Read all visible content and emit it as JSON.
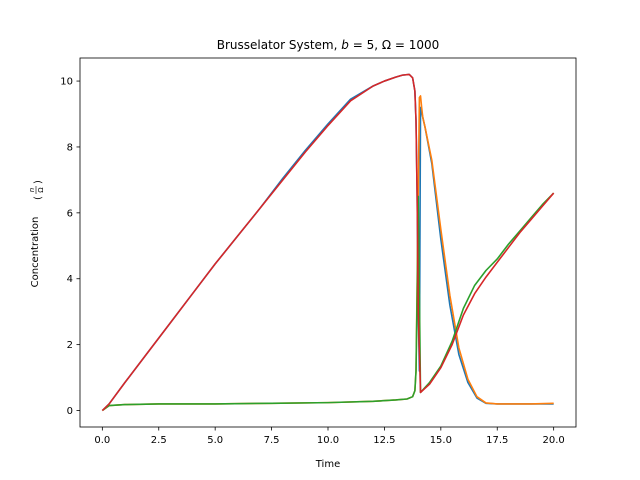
{
  "chart_data": {
    "type": "line",
    "title": "Brusselator System, b = 5, Ω = 1000",
    "title_parts": {
      "prefix": "Brusselator System, ",
      "b_symbol": "b",
      "b_value": " = 5, ",
      "omega_symbol": "Ω",
      "omega_value": " = 1000"
    },
    "xlabel": "Time",
    "ylabel": "Concentration",
    "ylabel_fraction": {
      "numerator": "n",
      "denominator": "Ω"
    },
    "xlim": [
      -0.99,
      20.99
    ],
    "ylim": [
      -0.5,
      10.7
    ],
    "xticks": [
      0.0,
      2.5,
      5.0,
      7.5,
      10.0,
      12.5,
      15.0,
      17.5,
      20.0
    ],
    "xtick_labels": [
      "0.0",
      "2.5",
      "5.0",
      "7.5",
      "10.0",
      "12.5",
      "15.0",
      "17.5",
      "20.0"
    ],
    "yticks": [
      0,
      2,
      4,
      6,
      8,
      10
    ],
    "ytick_labels": [
      "0",
      "2",
      "4",
      "6",
      "8",
      "10"
    ],
    "grid": false,
    "legend": "none",
    "series": [
      {
        "color": "#1f77b4",
        "x": [
          0,
          0.3,
          1,
          2,
          3,
          4,
          5,
          6,
          7,
          8,
          9,
          10,
          11,
          12,
          12.5,
          13,
          13.3,
          13.6,
          13.75,
          13.85,
          13.9,
          13.95,
          14.0,
          14.05,
          14.1,
          14.3,
          14.6,
          15.0,
          15.4,
          15.8,
          16.2,
          16.6,
          17.0,
          17.5,
          18,
          19,
          20
        ],
        "y": [
          0.0,
          0.2,
          0.85,
          1.75,
          2.65,
          3.55,
          4.45,
          5.3,
          6.15,
          7.05,
          7.9,
          8.7,
          9.45,
          9.85,
          10.0,
          10.12,
          10.18,
          10.2,
          10.1,
          9.7,
          8.8,
          6.5,
          3.0,
          1.2,
          9.2,
          8.6,
          7.5,
          5.2,
          3.2,
          1.7,
          0.85,
          0.38,
          0.22,
          0.2,
          0.2,
          0.2,
          0.2
        ]
      },
      {
        "color": "#ff7f0e",
        "x": [
          0,
          0.3,
          1,
          2.5,
          5,
          7.5,
          10,
          12,
          13,
          13.5,
          13.75,
          13.85,
          13.9,
          14.0,
          14.05,
          14.1,
          14.15,
          14.2,
          14.3,
          14.6,
          15.0,
          15.4,
          15.8,
          16.2,
          16.6,
          17.0,
          17.5,
          18,
          19,
          20
        ],
        "y": [
          0.0,
          0.15,
          0.18,
          0.2,
          0.2,
          0.22,
          0.24,
          0.28,
          0.32,
          0.35,
          0.42,
          0.6,
          1.2,
          6.5,
          9.5,
          9.55,
          9.2,
          8.9,
          8.6,
          7.6,
          5.5,
          3.5,
          1.9,
          0.95,
          0.42,
          0.23,
          0.2,
          0.2,
          0.2,
          0.22
        ]
      },
      {
        "color": "#2ca02c",
        "x": [
          0,
          0.3,
          1,
          2.5,
          5,
          7.5,
          10,
          12,
          13,
          13.5,
          13.75,
          13.85,
          13.9,
          13.95,
          14.0,
          14.1,
          14.5,
          15.0,
          15.5,
          16.0,
          16.5,
          17.0,
          17.5,
          18.0,
          18.5,
          19.0,
          19.5,
          20.0
        ],
        "y": [
          0.0,
          0.15,
          0.18,
          0.2,
          0.2,
          0.22,
          0.24,
          0.28,
          0.32,
          0.35,
          0.42,
          0.6,
          1.2,
          3.5,
          6.5,
          0.55,
          0.85,
          1.35,
          2.1,
          3.1,
          3.8,
          4.25,
          4.6,
          5.05,
          5.45,
          5.85,
          6.25,
          6.6
        ]
      },
      {
        "color": "#d62728",
        "x": [
          0,
          0.3,
          1,
          2,
          3,
          4,
          5,
          6,
          7,
          8,
          9,
          10,
          11,
          12,
          12.5,
          13,
          13.3,
          13.6,
          13.75,
          13.85,
          13.9,
          13.95,
          14.0,
          14.1,
          14.5,
          15.0,
          15.5,
          16.0,
          16.5,
          17.0,
          17.5,
          18.0,
          18.5,
          19.0,
          19.5,
          20.0
        ],
        "y": [
          0.0,
          0.2,
          0.85,
          1.75,
          2.65,
          3.55,
          4.45,
          5.3,
          6.15,
          7.0,
          7.85,
          8.65,
          9.4,
          9.85,
          10.0,
          10.12,
          10.18,
          10.2,
          10.1,
          9.7,
          8.8,
          6.5,
          3.0,
          0.55,
          0.8,
          1.3,
          2.0,
          2.9,
          3.55,
          4.05,
          4.5,
          4.95,
          5.4,
          5.8,
          6.2,
          6.6
        ]
      }
    ]
  }
}
